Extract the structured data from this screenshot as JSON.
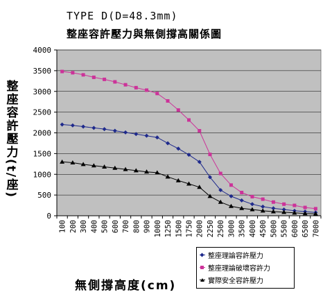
{
  "title_line1": "TYPE D(D=48.3mm)",
  "title_line2": "整座容許壓力與無側撐高關係圖",
  "chart_data": {
    "type": "line",
    "title": "TYPE D(D=48.3mm) 整座容許壓力與無側撐高關係圖",
    "xlabel": "無側撐高度(cm)",
    "ylabel": "整座容許壓力(t/座)",
    "ylim": [
      0,
      4000
    ],
    "yticks": [
      0,
      500,
      1000,
      1500,
      2000,
      2500,
      3000,
      3500,
      4000
    ],
    "grid": "horizontal",
    "legend_position": "bottom-right",
    "categories": [
      "100",
      "200",
      "300",
      "400",
      "500",
      "600",
      "700",
      "800",
      "900",
      "1000",
      "1250",
      "1500",
      "1750",
      "2000",
      "2250",
      "2500",
      "3000",
      "3500",
      "4000",
      "4500",
      "5000",
      "5500",
      "6000",
      "6500",
      "7000"
    ],
    "series": [
      {
        "name": "整座理論容許壓力",
        "color": "#1f2a8c",
        "marker": "diamond",
        "values": [
          2200,
          2180,
          2150,
          2120,
          2090,
          2050,
          2010,
          1970,
          1930,
          1890,
          1750,
          1620,
          1470,
          1300,
          930,
          620,
          470,
          370,
          280,
          220,
          180,
          150,
          120,
          100,
          80
        ]
      },
      {
        "name": "整座理論破壞容許力",
        "color": "#cc3399",
        "marker": "square",
        "values": [
          3480,
          3450,
          3400,
          3340,
          3290,
          3230,
          3160,
          3090,
          3030,
          2950,
          2770,
          2550,
          2310,
          2050,
          1480,
          1020,
          740,
          560,
          460,
          400,
          330,
          280,
          250,
          200,
          170
        ]
      },
      {
        "name": "實際安全容許壓力",
        "color": "#000000",
        "marker": "triangle",
        "values": [
          1300,
          1280,
          1240,
          1210,
          1180,
          1150,
          1120,
          1090,
          1060,
          1040,
          940,
          850,
          770,
          690,
          470,
          330,
          230,
          180,
          150,
          120,
          100,
          85,
          70,
          55,
          45
        ]
      }
    ]
  }
}
